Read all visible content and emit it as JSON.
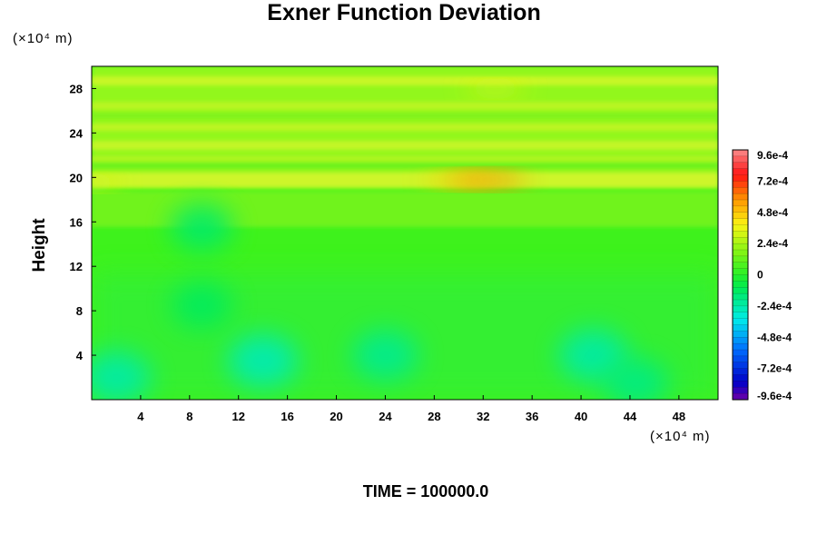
{
  "chart_data": {
    "type": "heatmap",
    "title": "Exner Function Deviation",
    "ylabel": "Height",
    "xlabel": "",
    "x_unit": "(×10⁴ m)",
    "y_unit": "(×10⁴ m)",
    "x_ticks": [
      4,
      8,
      12,
      16,
      20,
      24,
      28,
      32,
      36,
      40,
      44,
      48
    ],
    "y_ticks": [
      4,
      8,
      12,
      16,
      20,
      24,
      28
    ],
    "xlim": [
      0,
      51.2
    ],
    "ylim": [
      0,
      30
    ],
    "colorbar": {
      "min": -0.00096,
      "max": 0.00096,
      "tick_values": [
        0.00096,
        0.00072,
        0.00048,
        0.00024,
        0,
        -0.00024,
        -0.00048,
        -0.00072,
        -0.00096
      ],
      "tick_labels": [
        "9.6e-4",
        "7.2e-4",
        "4.8e-4",
        "2.4e-4",
        "0",
        "-2.4e-4",
        "-4.8e-4",
        "-7.2e-4",
        "-9.6e-4"
      ]
    },
    "field_features": [
      {
        "x": 0,
        "y": 19.5,
        "value": 0.0003
      },
      {
        "x": 30,
        "y": 19.8,
        "value": 0.00048
      },
      {
        "x": 32.5,
        "y": 19.8,
        "value": 0.0006
      },
      {
        "x": 33,
        "y": 28,
        "value": 0.00034
      },
      {
        "x": 2,
        "y": 2,
        "value": -0.00024
      },
      {
        "x": 14,
        "y": 3.5,
        "value": -0.00026
      },
      {
        "x": 24,
        "y": 4,
        "value": -0.0002
      },
      {
        "x": 41,
        "y": 4,
        "value": -0.00024
      },
      {
        "x": 44.5,
        "y": 1.5,
        "value": -0.00018
      },
      {
        "x": 9,
        "y": 15.5,
        "value": -0.00014
      },
      {
        "x": 9,
        "y": 8.5,
        "value": -0.00012
      }
    ]
  },
  "time_label": "TIME = 100000.0"
}
